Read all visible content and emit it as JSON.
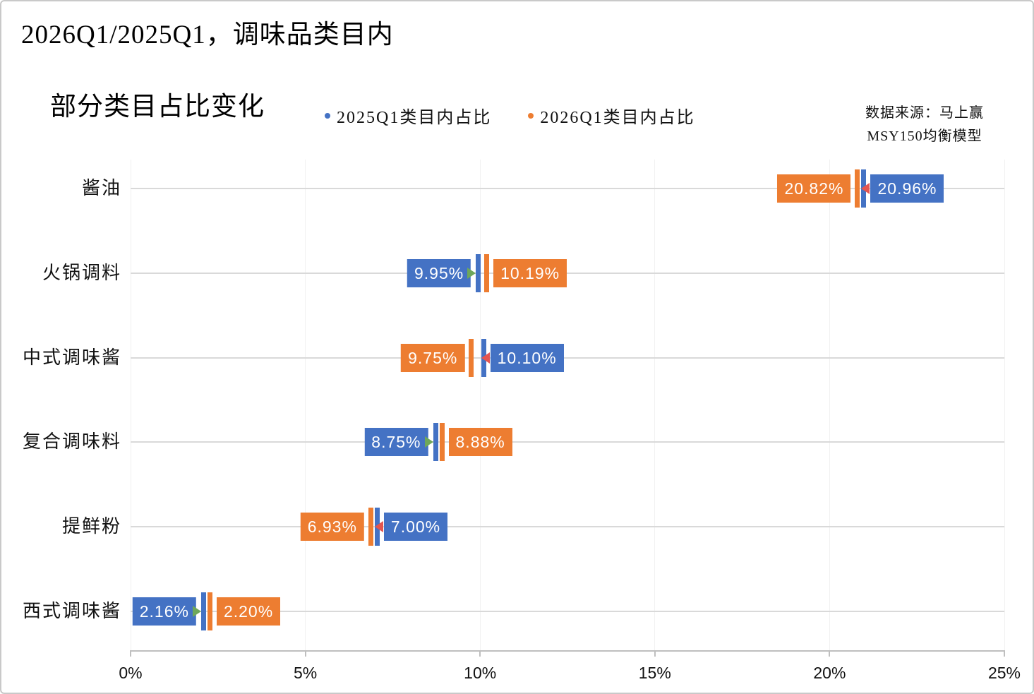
{
  "title": {
    "line1": "2026Q1/2025Q1，调味品类目内",
    "line2": "部分类目占比变化"
  },
  "legend": [
    {
      "label": "2025Q1类目内占比",
      "color": "#4472C4"
    },
    {
      "label": "2026Q1类目内占比",
      "color": "#ED7D31"
    }
  ],
  "source": {
    "line1": "数据来源：马上赢",
    "line2": "MSY150均衡模型"
  },
  "colors": {
    "series_2025": "#4472C4",
    "series_2026": "#ED7D31",
    "increase_arrow": "#6EA75A",
    "decrease_arrow": "#E45550",
    "gridline_h": "#d9d9d9",
    "gridline_v": "#f1f1f1",
    "axis": "#bfbfbf",
    "label_text": "#ffffff"
  },
  "chart_data": {
    "type": "scatter",
    "variant": "paired-dumbbell-ticks",
    "title": "2026Q1/2025Q1，调味品类目内部分类目占比变化",
    "categories": [
      "酱油",
      "火锅调料",
      "中式调味酱",
      "复合调味料",
      "提鲜粉",
      "西式调味酱"
    ],
    "series": [
      {
        "name": "2025Q1类目内占比",
        "color": "#4472C4",
        "values": [
          20.96,
          9.95,
          10.1,
          8.75,
          7.0,
          2.16
        ],
        "labels": [
          "20.96%",
          "9.95%",
          "10.10%",
          "8.75%",
          "7.00%",
          "2.16%"
        ]
      },
      {
        "name": "2026Q1类目内占比",
        "color": "#ED7D31",
        "values": [
          20.82,
          10.19,
          9.75,
          8.88,
          6.93,
          2.2
        ],
        "labels": [
          "20.82%",
          "10.19%",
          "9.75%",
          "8.88%",
          "6.93%",
          "2.20%"
        ]
      }
    ],
    "change_direction": [
      "down",
      "up",
      "down",
      "up",
      "down",
      "up"
    ],
    "xlim": [
      0,
      25
    ],
    "x_tick_values": [
      0,
      5,
      10,
      15,
      20,
      25
    ],
    "x_tick_labels": [
      "0%",
      "5%",
      "10%",
      "15%",
      "20%",
      "25%"
    ],
    "grid": "horizontal-per-category, faint vertical at ticks",
    "legend_position": "top-center"
  }
}
